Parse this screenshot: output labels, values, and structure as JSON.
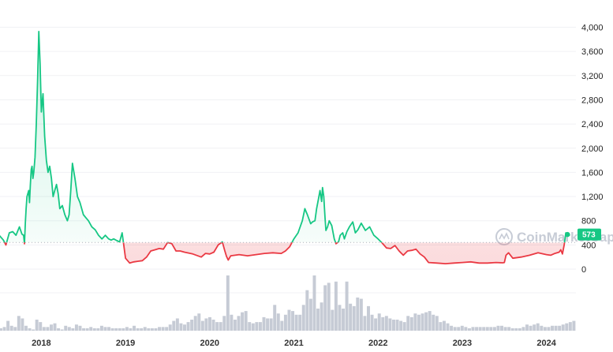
{
  "watermark": "CoinMarketCap",
  "chart_data": {
    "type": "area",
    "baseline": 440,
    "current_price_label": "573",
    "colors": {
      "up": "#16c784",
      "down": "#ea3943",
      "volume": "#c6cbd5",
      "grid": "#f0f1f4"
    },
    "xlim": [
      2017.5,
      2024.35
    ],
    "ylim": [
      -400,
      4200
    ],
    "yticks": [
      0,
      400,
      800,
      1200,
      1600,
      2000,
      2400,
      2800,
      3200,
      3600,
      4000
    ],
    "ytick_labels": [
      "0",
      "400",
      "800",
      "1,200",
      "1,600",
      "2,000",
      "2,400",
      "2,800",
      "3,200",
      "3,600",
      "4,000"
    ],
    "xticks": [
      2018,
      2019,
      2020,
      2021,
      2022,
      2023,
      2024
    ],
    "xtick_labels": [
      "2018",
      "2019",
      "2020",
      "2021",
      "2022",
      "2023",
      "2024"
    ],
    "series": [
      {
        "x": [
          2017.5,
          2017.55,
          2017.58,
          2017.62,
          2017.66,
          2017.7,
          2017.74,
          2017.77,
          2017.79,
          2017.8,
          2017.81,
          2017.82,
          2017.83,
          2017.84,
          2017.85,
          2017.86,
          2017.87,
          2017.88,
          2017.89,
          2017.9,
          2017.91,
          2017.925,
          2017.94,
          2017.955,
          2017.97,
          2017.985,
          2018.0,
          2018.02,
          2018.04,
          2018.06,
          2018.08,
          2018.1,
          2018.12,
          2018.14,
          2018.16,
          2018.18,
          2018.2,
          2018.22,
          2018.25,
          2018.28,
          2018.31,
          2018.33,
          2018.35,
          2018.37,
          2018.4,
          2018.43,
          2018.46,
          2018.5,
          2018.53,
          2018.56,
          2018.6,
          2018.64,
          2018.68,
          2018.72,
          2018.76,
          2018.8,
          2018.83,
          2018.86,
          2018.9,
          2018.93,
          2018.96,
          2019.0,
          2019.05,
          2019.1,
          2019.15,
          2019.2,
          2019.25,
          2019.3,
          2019.35,
          2019.4,
          2019.45,
          2019.5,
          2019.55,
          2019.6,
          2019.65,
          2019.7,
          2019.8,
          2019.9,
          2019.95,
          2020.0,
          2020.05,
          2020.1,
          2020.15,
          2020.18,
          2020.2,
          2020.22,
          2020.25,
          2020.3,
          2020.35,
          2020.45,
          2020.55,
          2020.65,
          2020.75,
          2020.85,
          2020.9,
          2020.95,
          2021.0,
          2021.05,
          2021.1,
          2021.13,
          2021.16,
          2021.2,
          2021.22,
          2021.25,
          2021.27,
          2021.29,
          2021.31,
          2021.33,
          2021.34,
          2021.355,
          2021.37,
          2021.38,
          2021.4,
          2021.42,
          2021.45,
          2021.48,
          2021.5,
          2021.53,
          2021.55,
          2021.58,
          2021.6,
          2021.63,
          2021.66,
          2021.7,
          2021.73,
          2021.76,
          2021.8,
          2021.85,
          2021.9,
          2021.95,
          2022.0,
          2022.05,
          2022.1,
          2022.15,
          2022.2,
          2022.25,
          2022.3,
          2022.35,
          2022.4,
          2022.45,
          2022.5,
          2022.55,
          2022.6,
          2022.7,
          2022.8,
          2022.9,
          2023.0,
          2023.1,
          2023.2,
          2023.3,
          2023.4,
          2023.48,
          2023.5,
          2023.52,
          2023.55,
          2023.6,
          2023.7,
          2023.8,
          2023.9,
          2024.0,
          2024.05,
          2024.1,
          2024.15,
          2024.17,
          2024.19,
          2024.21,
          2024.23,
          2024.25
        ],
        "y": [
          560,
          480,
          400,
          600,
          620,
          560,
          700,
          580,
          560,
          420,
          760,
          1000,
          1200,
          1250,
          1300,
          1100,
          1400,
          1650,
          1700,
          1500,
          1600,
          1850,
          2400,
          3100,
          3930,
          3400,
          2600,
          2900,
          2200,
          1800,
          1600,
          1700,
          1500,
          1200,
          1300,
          1400,
          1250,
          1000,
          1050,
          900,
          800,
          900,
          1300,
          1750,
          1500,
          1200,
          1100,
          900,
          850,
          800,
          700,
          650,
          560,
          500,
          560,
          500,
          480,
          500,
          470,
          450,
          600,
          180,
          100,
          120,
          130,
          140,
          200,
          300,
          320,
          340,
          330,
          440,
          420,
          300,
          300,
          280,
          250,
          200,
          260,
          250,
          280,
          400,
          450,
          300,
          210,
          150,
          220,
          230,
          240,
          220,
          240,
          260,
          270,
          260,
          300,
          370,
          500,
          600,
          800,
          1000,
          900,
          750,
          780,
          800,
          1000,
          1150,
          1300,
          1120,
          1350,
          1200,
          850,
          640,
          700,
          800,
          720,
          500,
          420,
          450,
          560,
          600,
          500,
          620,
          700,
          780,
          600,
          650,
          760,
          640,
          700,
          560,
          500,
          430,
          350,
          340,
          390,
          300,
          230,
          300,
          310,
          330,
          250,
          200,
          110,
          100,
          90,
          100,
          110,
          120,
          100,
          100,
          110,
          105,
          110,
          230,
          270,
          180,
          200,
          230,
          270,
          240,
          230,
          260,
          280,
          320,
          250,
          400,
          600,
          573
        ]
      }
    ],
    "volume": [
      2,
      3,
      8,
      4,
      3,
      12,
      10,
      4,
      2,
      1,
      9,
      7,
      3,
      3,
      5,
      6,
      2,
      1,
      4,
      3,
      2,
      5,
      4,
      2,
      2,
      3,
      2,
      2,
      4,
      3,
      3,
      2,
      2,
      2,
      2,
      3,
      2,
      4,
      2,
      2,
      3,
      2,
      2,
      2,
      3,
      3,
      3,
      5,
      8,
      10,
      6,
      5,
      7,
      9,
      12,
      14,
      8,
      10,
      11,
      9,
      7,
      7,
      12,
      45,
      13,
      9,
      12,
      15,
      16,
      7,
      6,
      7,
      7,
      11,
      10,
      10,
      21,
      14,
      8,
      13,
      17,
      16,
      13,
      13,
      21,
      33,
      26,
      45,
      18,
      23,
      37,
      39,
      17,
      40,
      21,
      18,
      40,
      22,
      20,
      27,
      26,
      12,
      20,
      13,
      10,
      14,
      11,
      12,
      10,
      9,
      9,
      8,
      7,
      12,
      11,
      14,
      13,
      14,
      15,
      16,
      13,
      12,
      7,
      8,
      6,
      4,
      3,
      3,
      4,
      3,
      2,
      3,
      3,
      3,
      3,
      3,
      3,
      3,
      4,
      4,
      3,
      3,
      2,
      2,
      2,
      3,
      5,
      4,
      5,
      6,
      4,
      3,
      3,
      4,
      4,
      4,
      5,
      6,
      7,
      8
    ]
  }
}
